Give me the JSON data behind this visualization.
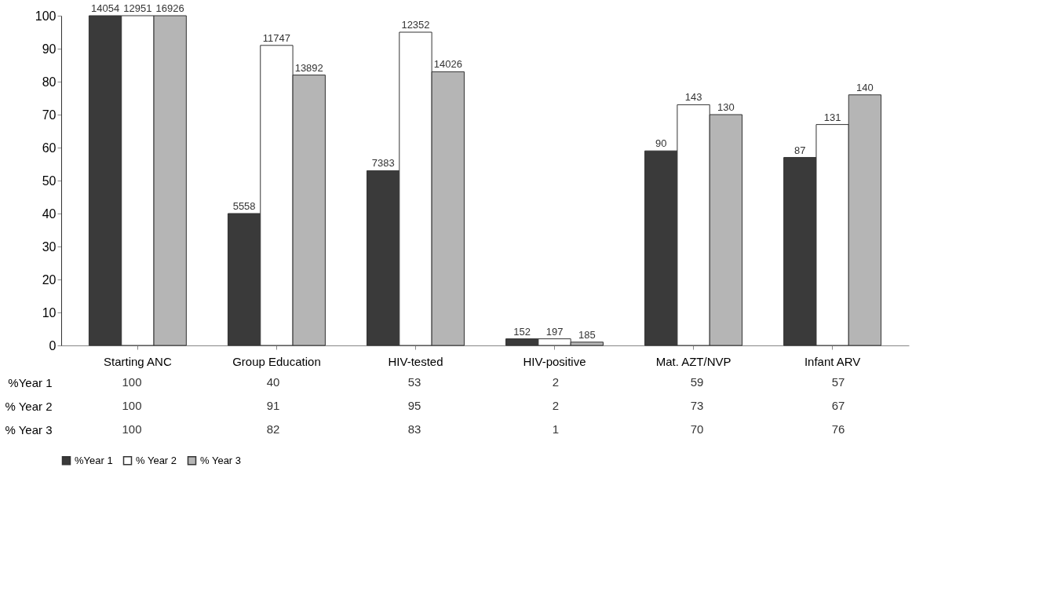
{
  "chart_data": {
    "type": "bar",
    "categories": [
      "Starting ANC",
      "Group Education",
      "HIV-tested",
      "HIV-positive",
      "Mat. AZT/NVP",
      "Infant ARV"
    ],
    "series": [
      {
        "name": "%Year 1",
        "color": "#3a3a3a",
        "values": [
          100,
          40,
          53,
          2,
          59,
          57
        ]
      },
      {
        "name": "% Year 2",
        "color": "#ffffff",
        "values": [
          100,
          91,
          95,
          2,
          73,
          67
        ]
      },
      {
        "name": "% Year 3",
        "color": "#b5b5b5",
        "values": [
          100,
          82,
          83,
          1,
          70,
          76
        ]
      }
    ],
    "annotations": [
      "14054",
      "12951",
      "16926",
      "5558",
      "11747",
      "13892",
      "7383",
      "12352",
      "14026",
      "152",
      "197",
      "185",
      "90",
      "143",
      "130",
      "87",
      "131",
      "140"
    ],
    "ylim": [
      0,
      100
    ],
    "yticks": [
      0,
      10,
      20,
      30,
      40,
      50,
      60,
      70,
      80,
      90,
      100
    ],
    "grid": false,
    "legend": "bottom",
    "data_labels": true
  }
}
